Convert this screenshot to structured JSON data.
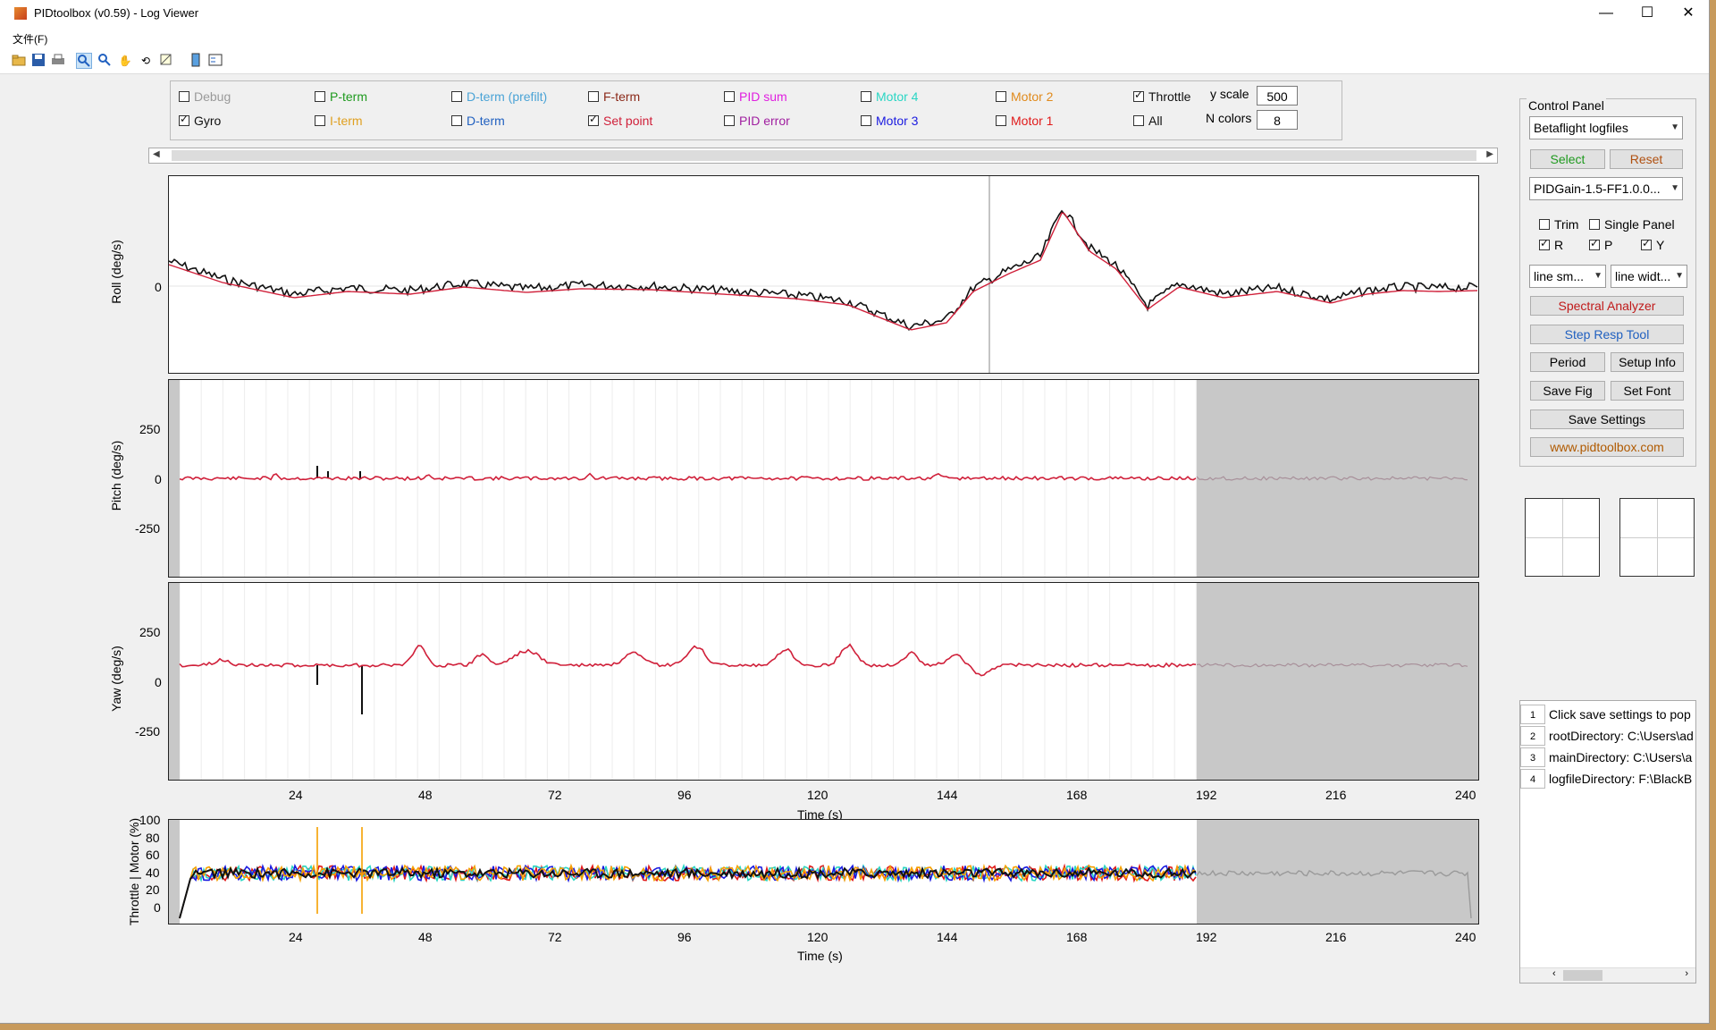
{
  "window": {
    "title": "PIDtoolbox (v0.59) - Log Viewer",
    "controls": [
      "—",
      "☐",
      "✕"
    ]
  },
  "menu": {
    "file": "文件(F)"
  },
  "toolbar": {
    "icons": [
      "open-folder-icon",
      "save-icon",
      "print-icon",
      "zoom-in-icon",
      "zoom-out-icon",
      "pan-icon",
      "rotate-icon",
      "data-cursor-icon",
      "colorbar-icon",
      "legend-icon"
    ]
  },
  "series_toggles": {
    "row1": [
      {
        "label": "Debug",
        "checked": false,
        "color": "#9a9a9a"
      },
      {
        "label": "P-term",
        "checked": false,
        "color": "#1f9a1f"
      },
      {
        "label": "D-term (prefilt)",
        "checked": false,
        "color": "#4aa3d6"
      },
      {
        "label": "F-term",
        "checked": false,
        "color": "#8b2a1a"
      },
      {
        "label": "PID sum",
        "checked": false,
        "color": "#e020e0"
      },
      {
        "label": "Motor 4",
        "checked": false,
        "color": "#2ad6c4"
      },
      {
        "label": "Motor 2",
        "checked": false,
        "color": "#e08a1c"
      },
      {
        "label": "Throttle",
        "checked": true,
        "color": "#111111"
      }
    ],
    "row2": [
      {
        "label": "Gyro",
        "checked": true,
        "color": "#111111"
      },
      {
        "label": "I-term",
        "checked": false,
        "color": "#e0a020"
      },
      {
        "label": "D-term",
        "checked": false,
        "color": "#2060c0"
      },
      {
        "label": "Set point",
        "checked": true,
        "color": "#d0203a"
      },
      {
        "label": "PID error",
        "checked": false,
        "color": "#a020a0"
      },
      {
        "label": "Motor 3",
        "checked": false,
        "color": "#1a1ae0"
      },
      {
        "label": "Motor 1",
        "checked": false,
        "color": "#e01a1a"
      },
      {
        "label": "All",
        "checked": false,
        "color": "#111111"
      }
    ],
    "y_scale_label": "y scale",
    "y_scale_value": "500",
    "n_colors_label": "N colors",
    "n_colors_value": "8"
  },
  "plots": {
    "roll": {
      "ylabel": "Roll (deg/s)",
      "yticks": [
        "0"
      ]
    },
    "pitch": {
      "ylabel": "Pitch (deg/s)",
      "yticks": [
        "250",
        "0",
        "-250"
      ]
    },
    "yaw": {
      "ylabel": "Yaw (deg/s)",
      "yticks": [
        "250",
        "0",
        "-250"
      ]
    },
    "motor": {
      "ylabel": "Throttle | Motor (%)",
      "yticks": [
        "100",
        "80",
        "60",
        "40",
        "20",
        "0"
      ]
    },
    "xticks": [
      "24",
      "48",
      "72",
      "96",
      "120",
      "144",
      "168",
      "192",
      "216",
      "240"
    ],
    "xlabel": "Time (s)",
    "colors": {
      "gyro": "#111111",
      "setpoint": "#d0203a",
      "shade": "#c8c8c8",
      "motor_orange": "#f5a000",
      "motor_blue": "#1a1ae0",
      "motor_cyan": "#2ad6c4",
      "motor_red": "#e01a1a"
    }
  },
  "control_panel": {
    "title": "Control Panel",
    "log_type": "Betaflight logfiles",
    "select": "Select",
    "reset": "Reset",
    "file": "PIDGain-1.5-FF1.0.0...",
    "trim": "Trim",
    "single_panel": "Single Panel",
    "r": "R",
    "p": "P",
    "y": "Y",
    "line_smooth": "line sm...",
    "line_width": "line widt...",
    "spectral": "Spectral Analyzer",
    "step_resp": "Step Resp Tool",
    "period": "Period",
    "setup_info": "Setup Info",
    "save_fig": "Save Fig",
    "set_font": "Set Font",
    "save_settings": "Save Settings",
    "website": "www.pidtoolbox.com",
    "colors": {
      "select": "#1f9a1f",
      "reset": "#b05010",
      "spectral": "#c01a1a",
      "step": "#2060c0",
      "website": "#b05a00"
    }
  },
  "settings_table": [
    {
      "idx": "1",
      "text": "Click save settings to pop"
    },
    {
      "idx": "2",
      "text": "rootDirectory: C:\\Users\\ad"
    },
    {
      "idx": "3",
      "text": "mainDirectory: C:\\Users\\a"
    },
    {
      "idx": "4",
      "text": "logfileDirectory: F:\\BlackB"
    }
  ]
}
